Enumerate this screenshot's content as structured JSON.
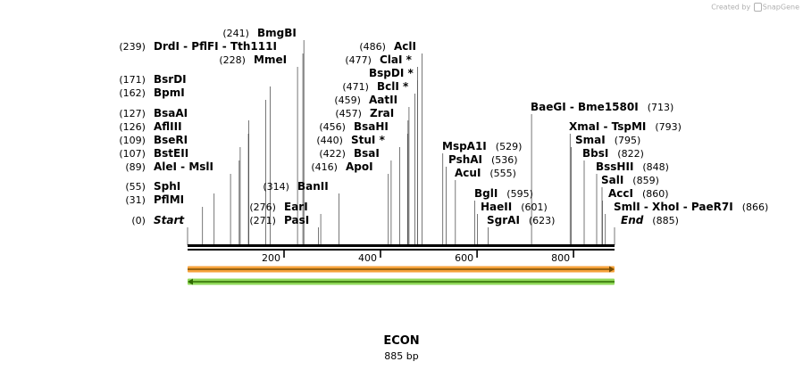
{
  "credit": {
    "prefix": "Created by",
    "brand": "SnapGene"
  },
  "sequence": {
    "name": "ECON",
    "length_label": "885 bp",
    "length": 885
  },
  "axis": {
    "ticks": [
      200,
      400,
      600,
      800
    ]
  },
  "sites": [
    {
      "name": "Start",
      "pos": "(0)",
      "bp": 0,
      "italic": true
    },
    {
      "name": "PflMI",
      "pos": "(31)",
      "bp": 31
    },
    {
      "name": "SphI",
      "pos": "(55)",
      "bp": 55
    },
    {
      "name": "AleI - MslI",
      "pos": "(89)",
      "bp": 89
    },
    {
      "name": "BstEII",
      "pos": "(107)",
      "bp": 107
    },
    {
      "name": "BseRI",
      "pos": "(109)",
      "bp": 109
    },
    {
      "name": "AflIII",
      "pos": "(126)",
      "bp": 126
    },
    {
      "name": "BsaAI",
      "pos": "(127)",
      "bp": 127
    },
    {
      "name": "BpmI",
      "pos": "(162)",
      "bp": 162
    },
    {
      "name": "BsrDI",
      "pos": "(171)",
      "bp": 171
    },
    {
      "name": "PasI",
      "pos": "(271)",
      "bp": 271
    },
    {
      "name": "EarI",
      "pos": "(276)",
      "bp": 276
    },
    {
      "name": "BanII",
      "pos": "(314)",
      "bp": 314
    },
    {
      "name": "MmeI",
      "pos": "(228)",
      "bp": 228
    },
    {
      "name": "DrdI - PflFI - Tth111I",
      "pos": "(239)",
      "bp": 239
    },
    {
      "name": "BmgBI",
      "pos": "(241)",
      "bp": 241
    },
    {
      "name": "ApoI",
      "pos": "(416)",
      "bp": 416
    },
    {
      "name": "BsaI",
      "pos": "(422)",
      "bp": 422
    },
    {
      "name": "StuI *",
      "pos": "(440)",
      "bp": 440
    },
    {
      "name": "BsaHI",
      "pos": "(456)",
      "bp": 456
    },
    {
      "name": "ZraI",
      "pos": "(457)",
      "bp": 457
    },
    {
      "name": "AatII",
      "pos": "(459)",
      "bp": 459
    },
    {
      "name": "BclI *",
      "pos": "(471)",
      "bp": 471
    },
    {
      "name": "BspDI *",
      "pos": "",
      "bp": 477
    },
    {
      "name": "ClaI *",
      "pos": "(477)",
      "bp": 477
    },
    {
      "name": "AclI",
      "pos": "(486)",
      "bp": 486
    },
    {
      "name": "MspA1I",
      "pos": "(529)",
      "bp": 529
    },
    {
      "name": "PshAI",
      "pos": "(536)",
      "bp": 536
    },
    {
      "name": "AcuI",
      "pos": "(555)",
      "bp": 555
    },
    {
      "name": "BglI",
      "pos": "(595)",
      "bp": 595
    },
    {
      "name": "HaeII",
      "pos": "(601)",
      "bp": 601
    },
    {
      "name": "SgrAI",
      "pos": "(623)",
      "bp": 623
    },
    {
      "name": "BaeGI - Bme1580I",
      "pos": "(713)",
      "bp": 713
    },
    {
      "name": "XmaI - TspMI",
      "pos": "(793)",
      "bp": 793
    },
    {
      "name": "SmaI",
      "pos": "(795)",
      "bp": 795
    },
    {
      "name": "BbsI",
      "pos": "(822)",
      "bp": 822
    },
    {
      "name": "BssHII",
      "pos": "(848)",
      "bp": 848
    },
    {
      "name": "SalI",
      "pos": "(859)",
      "bp": 859
    },
    {
      "name": "AccI",
      "pos": "(860)",
      "bp": 860
    },
    {
      "name": "SmlI - XhoI - PaeR7I",
      "pos": "(866)",
      "bp": 866
    },
    {
      "name": "End",
      "pos": "(885)",
      "bp": 885,
      "italic": true
    }
  ],
  "features": [
    {
      "name": "forward-feature",
      "start": 0,
      "end": 885,
      "strand": "+",
      "color": "#f6a33c",
      "line_color": "#7a4d00"
    },
    {
      "name": "reverse-feature",
      "start": 0,
      "end": 885,
      "strand": "-",
      "color": "#8fd858",
      "line_color": "#2f6a00"
    }
  ],
  "colors": {
    "backbone": "#000000",
    "connector": "#555555"
  }
}
